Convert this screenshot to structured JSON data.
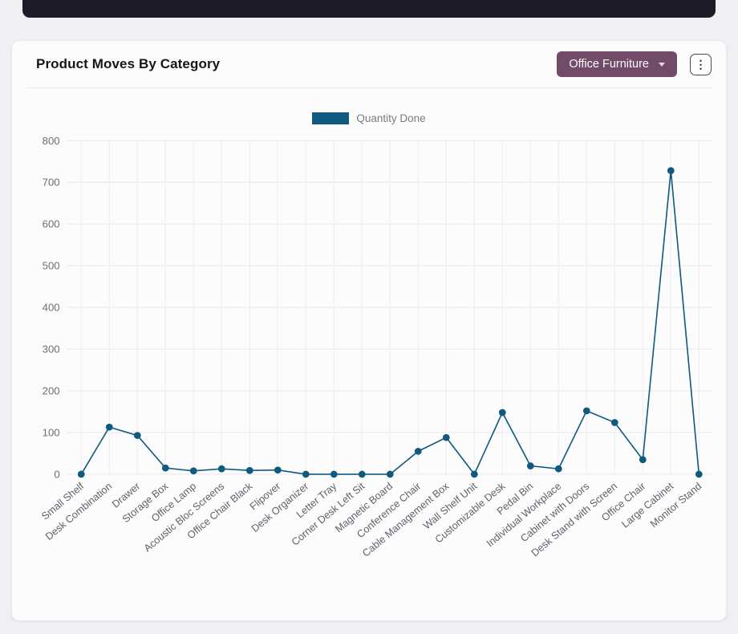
{
  "card": {
    "title": "Product Moves By Category",
    "category_filter": {
      "label": "Office Furniture"
    },
    "kebab_menu": "⋮"
  },
  "chart_data": {
    "type": "line",
    "title": "Product Moves By Category",
    "legend_position": "top",
    "grid": true,
    "xlabel": "",
    "ylabel": "",
    "ylim": [
      0,
      800
    ],
    "yticks": [
      0,
      100,
      200,
      300,
      400,
      500,
      600,
      700,
      800
    ],
    "categories": [
      "Small Shelf",
      "Desk Combination",
      "Drawer",
      "Storage Box",
      "Office Lamp",
      "Acoustic Bloc Screens",
      "Office Chair Black",
      "Flipover",
      "Desk Organizer",
      "Letter Tray",
      "Corner Desk Left Sit",
      "Magnetic Board",
      "Conference Chair",
      "Cable Management Box",
      "Wall Shelf Unit",
      "Customizable Desk",
      "Pedal Bin",
      "Individual Workplace",
      "Cabinet with Doors",
      "Desk Stand with Screen",
      "Office Chair",
      "Large Cabinet",
      "Monitor Stand"
    ],
    "series": [
      {
        "name": "Quantity Done",
        "color": "#105a7f",
        "values": [
          0,
          113,
          93,
          15,
          8,
          13,
          9,
          10,
          0,
          0,
          0,
          0,
          55,
          88,
          0,
          148,
          20,
          13,
          152,
          124,
          35,
          728,
          0
        ]
      }
    ]
  },
  "colors": {
    "accent": "#714b67",
    "line": "#105a7f",
    "page_bg": "#f0f0f4",
    "card_bg": "#fcfcfd",
    "navbar_bg": "#1c1b27"
  }
}
